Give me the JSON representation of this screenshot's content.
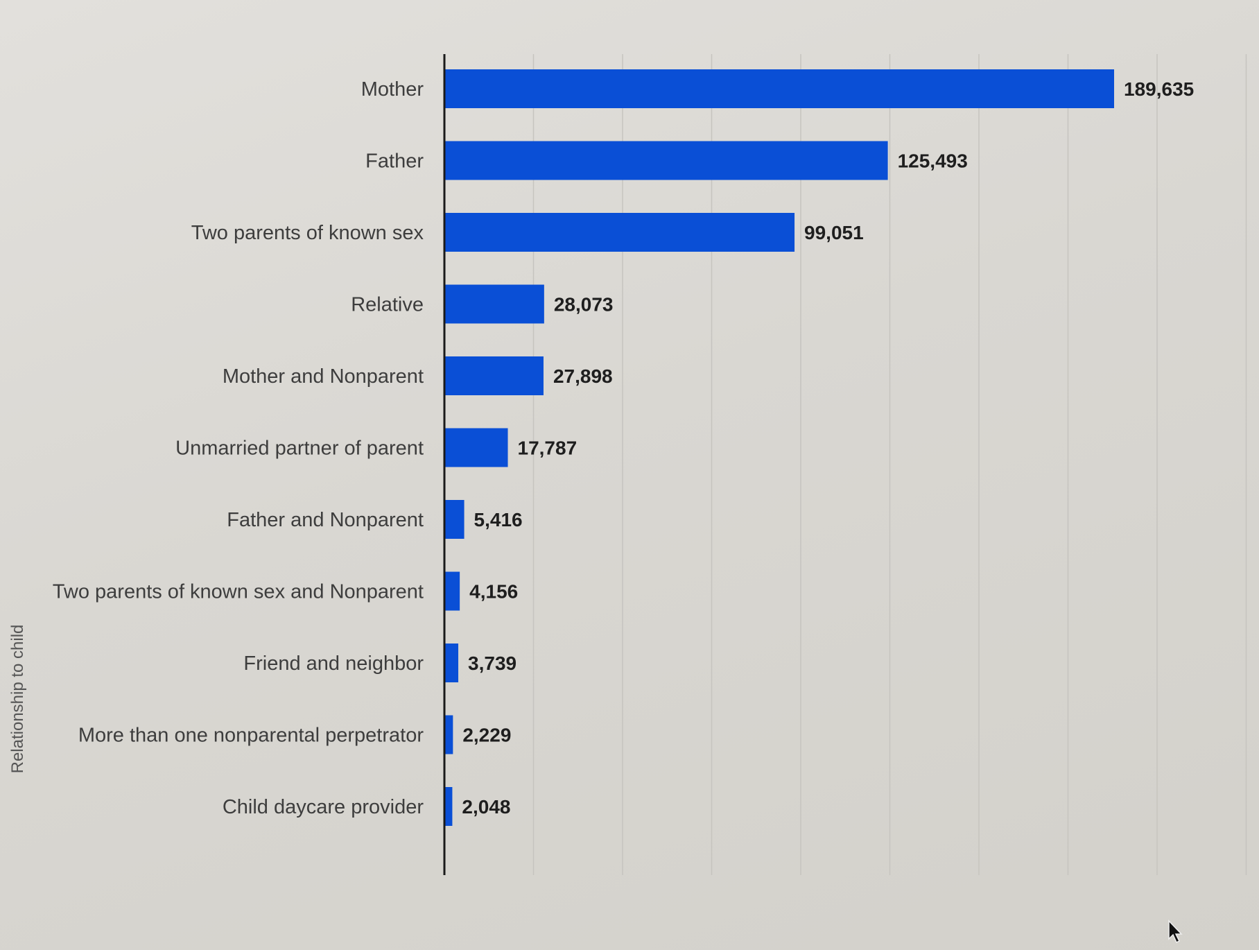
{
  "colors": {
    "bar": "#0a4fd6",
    "background": "#dad8d3"
  },
  "chart_data": {
    "type": "bar",
    "orientation": "horizontal",
    "ylabel": "Relationship to child",
    "xlim": [
      0,
      200000
    ],
    "grid": true,
    "categories": [
      "Mother",
      "Father",
      "Two parents of known sex",
      "Relative",
      "Mother and Nonparent",
      "Unmarried partner of parent",
      "Father and Nonparent",
      "Two parents of known sex and Nonparent",
      "Friend and neighbor",
      "More than one nonparental perpetrator",
      "Child daycare provider"
    ],
    "values": [
      189635,
      125493,
      99051,
      28073,
      27898,
      17787,
      5416,
      4156,
      3739,
      2229,
      2048
    ],
    "value_labels": [
      "189,635",
      "125,493",
      "99,051",
      "28,073",
      "27,898",
      "17,787",
      "5,416",
      "4,156",
      "3,739",
      "2,229",
      "2,048"
    ]
  }
}
